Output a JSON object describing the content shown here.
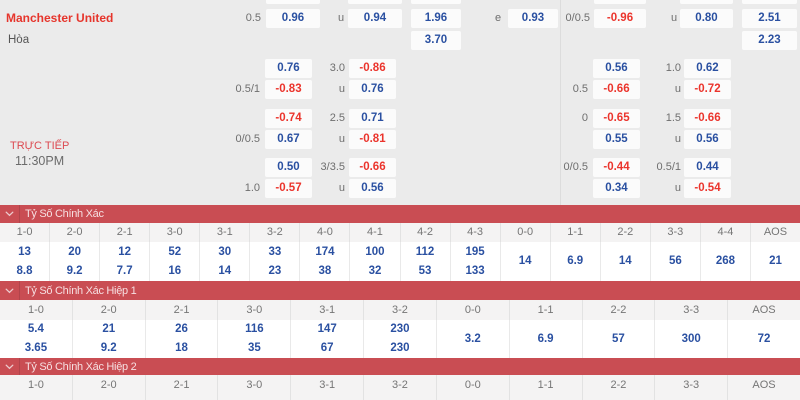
{
  "match": {
    "home_team": "Manchester United",
    "draw_label": "Hòa",
    "live_label": "TRỰC TIẾP",
    "kickoff_time": "11:30PM"
  },
  "odds": {
    "main": {
      "home": {
        "hdp": "0.5",
        "hdp_odds": "0.96",
        "ou": "u",
        "ou_odds": "0.94",
        "x12": "1.96",
        "oe": "e",
        "oe_odds": "0.93",
        "h_hdp": "0/0.5",
        "h_hdp_odds": "-0.96",
        "h_ou": "u",
        "h_ou_odds": "0.80",
        "h_x12": "2.51"
      },
      "draw": {
        "x12": "3.70",
        "h_x12": "2.23"
      }
    },
    "left_groups": [
      {
        "rowA": {
          "odds1": "0.76",
          "label2": "3.0",
          "odds2": "-0.86"
        },
        "rowB": {
          "label1": "0.5/1",
          "odds1": "-0.83",
          "label2": "u",
          "odds2": "0.76"
        }
      },
      {
        "rowA": {
          "odds1": "-0.74",
          "label2": "2.5",
          "odds2": "0.71"
        },
        "rowB": {
          "label1": "0/0.5",
          "odds1": "0.67",
          "label2": "u",
          "odds2": "-0.81"
        }
      },
      {
        "rowA": {
          "odds1": "0.50",
          "label2": "3/3.5",
          "odds2": "-0.66"
        },
        "rowB": {
          "label1": "1.0",
          "odds1": "-0.57",
          "label2": "u",
          "odds2": "0.56"
        }
      }
    ],
    "right_groups": [
      {
        "rowA": {
          "odds1": "0.56",
          "label2": "1.0",
          "odds2": "0.62"
        },
        "rowB": {
          "label1": "0.5",
          "odds1": "-0.66",
          "label2": "u",
          "odds2": "-0.72"
        }
      },
      {
        "rowA": {
          "label1": "0",
          "odds1": "-0.65",
          "label2": "1.5",
          "odds2": "-0.66"
        },
        "rowB": {
          "odds1": "0.55",
          "label2": "u",
          "odds2": "0.56"
        }
      },
      {
        "rowA": {
          "label1": "0/0.5",
          "odds1": "-0.44",
          "label2": "0.5/1",
          "odds2": "0.44"
        },
        "rowB": {
          "odds1": "0.34",
          "label2": "u",
          "odds2": "-0.54"
        }
      }
    ]
  },
  "score_sections": [
    {
      "title": "Tỷ Số Chính Xác",
      "columns": [
        {
          "label": "1-0",
          "values": [
            "13",
            "8.8"
          ]
        },
        {
          "label": "2-0",
          "values": [
            "20",
            "9.2"
          ]
        },
        {
          "label": "2-1",
          "values": [
            "12",
            "7.7"
          ]
        },
        {
          "label": "3-0",
          "values": [
            "52",
            "16"
          ]
        },
        {
          "label": "3-1",
          "values": [
            "30",
            "14"
          ]
        },
        {
          "label": "3-2",
          "values": [
            "33",
            "23"
          ]
        },
        {
          "label": "4-0",
          "values": [
            "174",
            "38"
          ]
        },
        {
          "label": "4-1",
          "values": [
            "100",
            "32"
          ]
        },
        {
          "label": "4-2",
          "values": [
            "112",
            "53"
          ]
        },
        {
          "label": "4-3",
          "values": [
            "195",
            "133"
          ]
        },
        {
          "label": "0-0",
          "values": [
            "14"
          ]
        },
        {
          "label": "1-1",
          "values": [
            "6.9"
          ]
        },
        {
          "label": "2-2",
          "values": [
            "14"
          ]
        },
        {
          "label": "3-3",
          "values": [
            "56"
          ]
        },
        {
          "label": "4-4",
          "values": [
            "268"
          ]
        },
        {
          "label": "AOS",
          "values": [
            "21"
          ]
        }
      ]
    },
    {
      "title": "Tỷ Số Chính Xác Hiệp 1",
      "columns": [
        {
          "label": "1-0",
          "values": [
            "5.4",
            "3.65"
          ]
        },
        {
          "label": "2-0",
          "values": [
            "21",
            "9.2"
          ]
        },
        {
          "label": "2-1",
          "values": [
            "26",
            "18"
          ]
        },
        {
          "label": "3-0",
          "values": [
            "116",
            "35"
          ]
        },
        {
          "label": "3-1",
          "values": [
            "147",
            "67"
          ]
        },
        {
          "label": "3-2",
          "values": [
            "230",
            "230"
          ]
        },
        {
          "label": "0-0",
          "values": [
            "3.2"
          ]
        },
        {
          "label": "1-1",
          "values": [
            "6.9"
          ]
        },
        {
          "label": "2-2",
          "values": [
            "57"
          ]
        },
        {
          "label": "3-3",
          "values": [
            "300"
          ]
        },
        {
          "label": "AOS",
          "values": [
            "72"
          ]
        }
      ]
    },
    {
      "title": "Tỷ Số Chính Xác Hiệp 2",
      "columns": [
        {
          "label": "1-0"
        },
        {
          "label": "2-0"
        },
        {
          "label": "2-1"
        },
        {
          "label": "3-0"
        },
        {
          "label": "3-1"
        },
        {
          "label": "3-2"
        },
        {
          "label": "0-0"
        },
        {
          "label": "1-1"
        },
        {
          "label": "2-2"
        },
        {
          "label": "3-3"
        },
        {
          "label": "AOS"
        }
      ]
    }
  ]
}
